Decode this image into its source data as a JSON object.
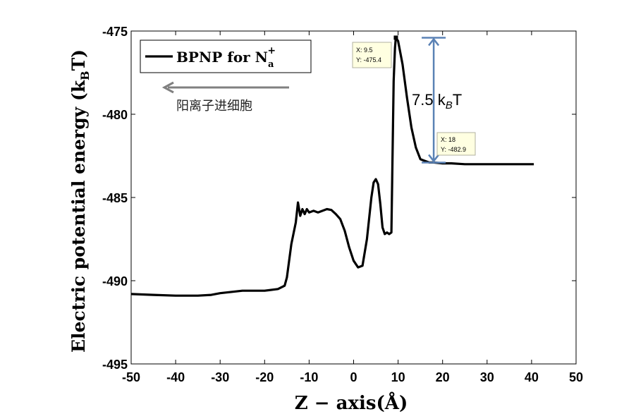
{
  "chart_data": {
    "type": "line",
    "xlabel": "Z − axis(Å)",
    "ylabel": "Electric potential energy (k",
    "ylabel_sub": "B",
    "ylabel_tail": "T)",
    "xlim": [
      -50,
      50
    ],
    "ylim": [
      -495,
      -475
    ],
    "xticks": [
      -50,
      -40,
      -30,
      -20,
      -10,
      0,
      10,
      20,
      30,
      40,
      50
    ],
    "yticks": [
      -475,
      -480,
      -485,
      -490,
      -495
    ],
    "grid": false,
    "legend_position": "top-left",
    "series": [
      {
        "name": "BPNP for N",
        "name_sub": "a",
        "name_sup": "+",
        "color": "#000000",
        "x": [
          -50,
          -45,
          -40,
          -35,
          -32,
          -30,
          -25,
          -20,
          -17,
          -15.5,
          -15,
          -14,
          -13,
          -12.5,
          -12,
          -11.5,
          -11,
          -10.5,
          -10,
          -9,
          -8,
          -7,
          -6,
          -5,
          -4,
          -3,
          -2,
          -1,
          0,
          1,
          2,
          3,
          4,
          4.5,
          5,
          5.5,
          6,
          6.5,
          7,
          7.5,
          8,
          8.5,
          9,
          9.3,
          9.5,
          10,
          11,
          12,
          13,
          14,
          15,
          16,
          17,
          18,
          20,
          22,
          25,
          30,
          35,
          40.5
        ],
        "y": [
          -490.8,
          -490.85,
          -490.9,
          -490.9,
          -490.85,
          -490.75,
          -490.6,
          -490.6,
          -490.5,
          -490.3,
          -489.8,
          -487.8,
          -486.5,
          -485.3,
          -486.1,
          -485.7,
          -486.0,
          -485.7,
          -485.9,
          -485.8,
          -485.9,
          -485.8,
          -485.7,
          -485.75,
          -486.0,
          -486.3,
          -487.0,
          -488.0,
          -488.8,
          -489.2,
          -489.1,
          -487.5,
          -485.0,
          -484.1,
          -483.9,
          -484.2,
          -485.4,
          -486.8,
          -487.2,
          -487.1,
          -487.2,
          -487.1,
          -478.0,
          -476.0,
          -475.4,
          -475.6,
          -477.0,
          -479.0,
          -480.8,
          -482.0,
          -482.7,
          -482.8,
          -482.9,
          -482.9,
          -482.95,
          -482.95,
          -483.0,
          -483.0,
          -483.0,
          -483.0
        ]
      }
    ],
    "data_tips": [
      {
        "x_text": "X: 9.5",
        "y_text": "Y: -475.4",
        "x": 9.5,
        "y": -475.4
      },
      {
        "x_text": "X: 18",
        "y_text": "Y: -482.9",
        "x": 18,
        "y": -482.9
      }
    ],
    "annotations": {
      "arrow_text": "阳离子进细胞",
      "barrier_label": "7.5 k",
      "barrier_sub": "B",
      "barrier_tail": "T",
      "barrier_top": -475.4,
      "barrier_bottom": -482.9,
      "barrier_x": 18
    },
    "colors": {
      "line": "#000000",
      "arrow_gray": "#808080",
      "barrier_arrow": "#5b82b5",
      "tip_bg": "#ffffe1"
    }
  }
}
